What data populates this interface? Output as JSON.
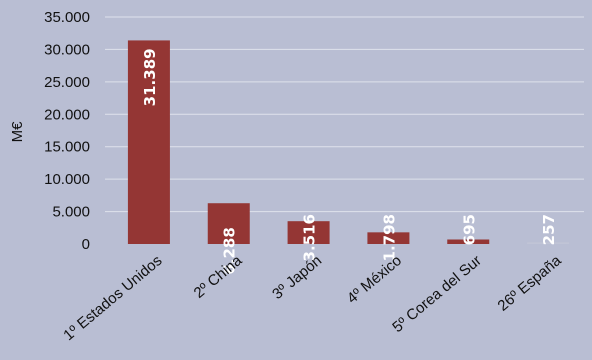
{
  "chart_data": {
    "type": "bar",
    "title": "",
    "xlabel": "",
    "ylabel": "M€",
    "ylim": [
      0,
      35000
    ],
    "yticks": [
      0,
      5000,
      10000,
      15000,
      20000,
      25000,
      30000,
      35000
    ],
    "ytick_labels": [
      "0",
      "5.000",
      "10.000",
      "15.000",
      "20.000",
      "25.000",
      "30.000",
      "35.000"
    ],
    "grid": true,
    "categories": [
      "1º Estados Unidos",
      "2º China",
      "3º Japón",
      "4º México",
      "5º Corea del Sur",
      "26º España"
    ],
    "values": [
      31389,
      6288,
      3516,
      1798,
      695,
      257
    ],
    "value_labels": [
      "31.389",
      "6.288",
      "3.516",
      "1.798",
      "695",
      "257"
    ],
    "bar_colors": [
      "#943634",
      "#943634",
      "#943634",
      "#943634",
      "#943634",
      "#c0c4d6"
    ],
    "background_color": "#b9bed3",
    "gridline_color": "#dfe2ec"
  }
}
